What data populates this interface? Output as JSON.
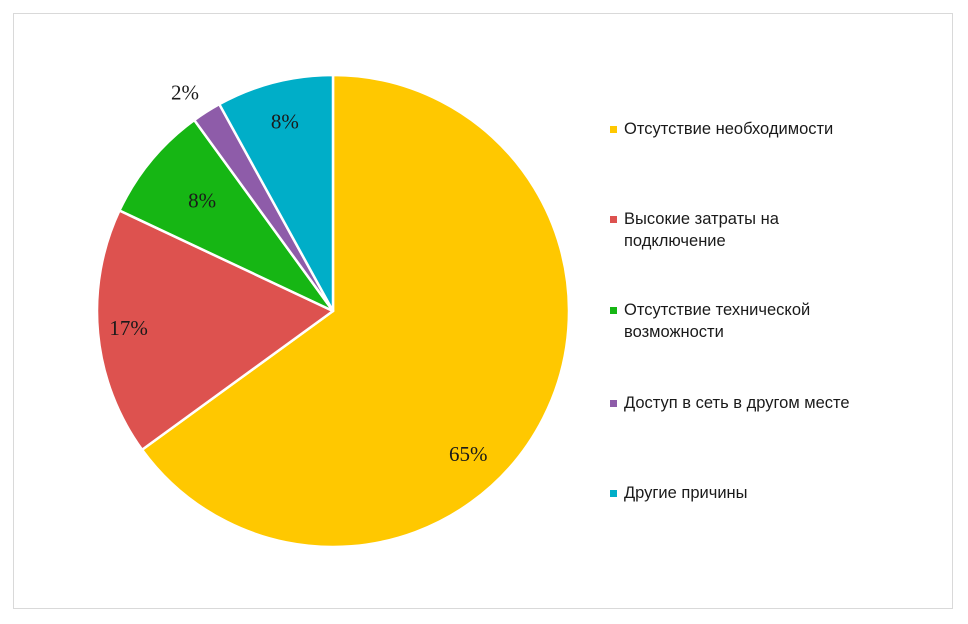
{
  "chart_data": {
    "type": "pie",
    "title": "",
    "start_angle_deg": 0,
    "direction": "clockwise",
    "slices": [
      {
        "label": "Отсутствие необходимости",
        "value": 65,
        "display": "65%",
        "color": "#ffc800"
      },
      {
        "label": "Высокие затраты на\nподключение",
        "value": 17,
        "display": "17%",
        "color": "#dd524f"
      },
      {
        "label": "Отсутствие технической\nвозможности",
        "value": 8,
        "display": "8%",
        "color": "#16b614"
      },
      {
        "label": "Доступ в сеть в другом месте",
        "value": 2,
        "display": "2%",
        "color": "#8e5ca9"
      },
      {
        "label": "Другие причины",
        "value": 8,
        "display": "8%",
        "color": "#00aec8"
      }
    ],
    "legend_position": "right"
  }
}
